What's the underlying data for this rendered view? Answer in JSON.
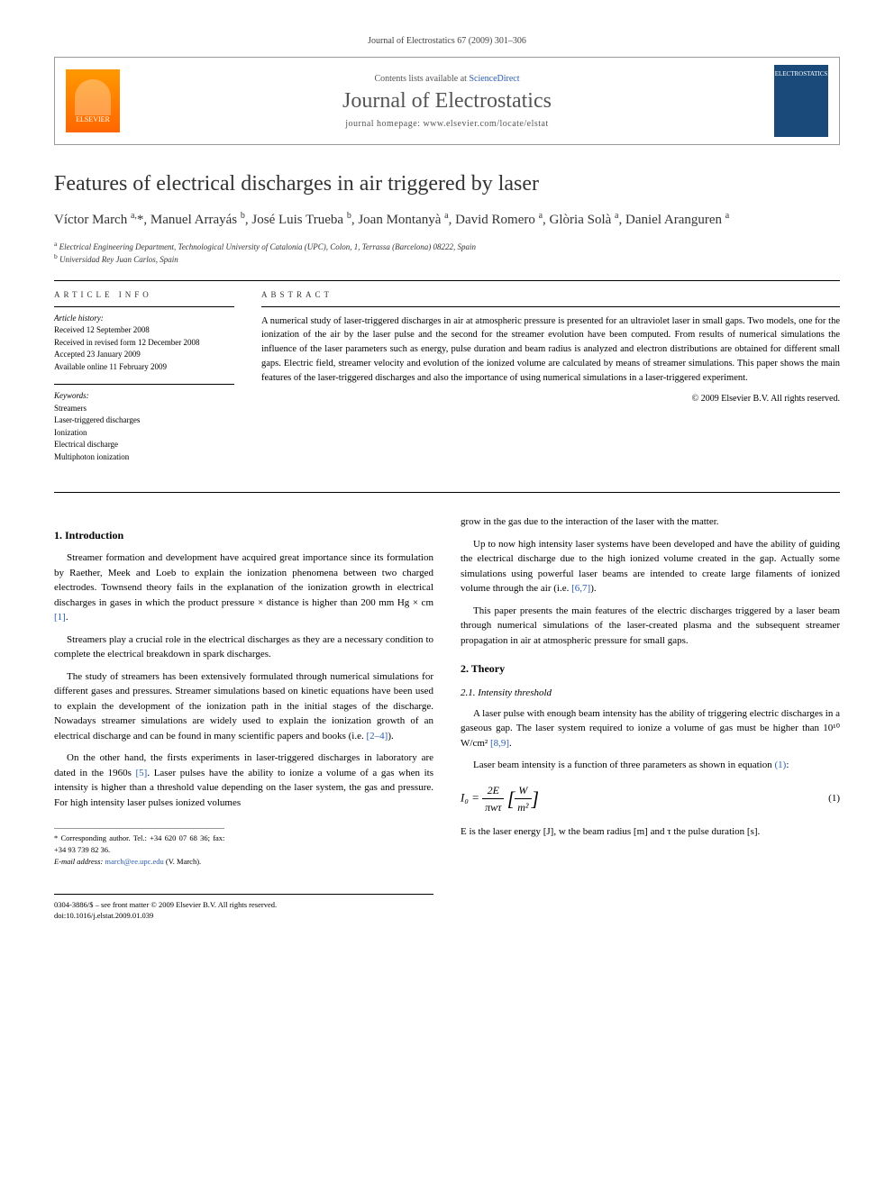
{
  "header": {
    "citation": "Journal of Electrostatics 67 (2009) 301–306",
    "contents_prefix": "Contents lists available at ",
    "contents_link": "ScienceDirect",
    "journal_name": "Journal of Electrostatics",
    "homepage_prefix": "journal homepage: ",
    "homepage_url": "www.elsevier.com/locate/elstat",
    "publisher_logo_text": "ELSEVIER",
    "cover_text": "ELECTROSTATICS"
  },
  "title": "Features of electrical discharges in air triggered by laser",
  "authors_html": "Víctor March <sup>a,</sup>*, Manuel Arrayás <sup>b</sup>, José Luis Trueba <sup>b</sup>, Joan Montanyà <sup>a</sup>, David Romero <sup>a</sup>, Glòria Solà <sup>a</sup>, Daniel Aranguren <sup>a</sup>",
  "affiliations": {
    "a": "Electrical Engineering Department, Technological University of Catalonia (UPC), Colon, 1, Terrassa (Barcelona) 08222, Spain",
    "b": "Universidad Rey Juan Carlos, Spain"
  },
  "article_info": {
    "heading": "ARTICLE INFO",
    "history_label": "Article history:",
    "received": "Received 12 September 2008",
    "revised": "Received in revised form 12 December 2008",
    "accepted": "Accepted 23 January 2009",
    "online": "Available online 11 February 2009",
    "keywords_label": "Keywords:",
    "keywords": [
      "Streamers",
      "Laser-triggered discharges",
      "Ionization",
      "Electrical discharge",
      "Multiphoton ionization"
    ]
  },
  "abstract": {
    "heading": "ABSTRACT",
    "text": "A numerical study of laser-triggered discharges in air at atmospheric pressure is presented for an ultraviolet laser in small gaps. Two models, one for the ionization of the air by the laser pulse and the second for the streamer evolution have been computed. From results of numerical simulations the influence of the laser parameters such as energy, pulse duration and beam radius is analyzed and electron distributions are obtained for different small gaps. Electric field, streamer velocity and evolution of the ionized volume are calculated by means of streamer simulations. This paper shows the main features of the laser-triggered discharges and also the importance of using numerical simulations in a laser-triggered experiment.",
    "copyright": "© 2009 Elsevier B.V. All rights reserved."
  },
  "body": {
    "sec1_title": "1. Introduction",
    "sec1_p1": "Streamer formation and development have acquired great importance since its formulation by Raether, Meek and Loeb to explain the ionization phenomena between two charged electrodes. Townsend theory fails in the explanation of the ionization growth in electrical discharges in gases in which the product pressure × distance is higher than 200 mm Hg × cm ",
    "sec1_ref1": "[1]",
    "sec1_p1_end": ".",
    "sec1_p2": "Streamers play a crucial role in the electrical discharges as they are a necessary condition to complete the electrical breakdown in spark discharges.",
    "sec1_p3": "The study of streamers has been extensively formulated through numerical simulations for different gases and pressures. Streamer simulations based on kinetic equations have been used to explain the development of the ionization path in the initial stages of the discharge. Nowadays streamer simulations are widely used to explain the ionization growth of an electrical discharge and can be found in many scientific papers and books (i.e. ",
    "sec1_ref2": "[2–4]",
    "sec1_p3_end": ").",
    "sec1_p4": "On the other hand, the firsts experiments in laser-triggered discharges in laboratory are dated in the 1960s ",
    "sec1_ref3": "[5]",
    "sec1_p4_end": ". Laser pulses have the ability to ionize a volume of a gas when its intensity is higher than a threshold value depending on the laser system, the gas and pressure. For high intensity laser pulses ionized volumes",
    "sec1_p5": "grow in the gas due to the interaction of the laser with the matter.",
    "sec1_p6": "Up to now high intensity laser systems have been developed and have the ability of guiding the electrical discharge due to the high ionized volume created in the gap. Actually some simulations using powerful laser beams are intended to create large filaments of ionized volume through the air (i.e. ",
    "sec1_ref4": "[6,7]",
    "sec1_p6_end": ").",
    "sec1_p7": "This paper presents the main features of the electric discharges triggered by a laser beam through numerical simulations of the laser-created plasma and the subsequent streamer propagation in air at atmospheric pressure for small gaps.",
    "sec2_title": "2. Theory",
    "sec21_title": "2.1. Intensity threshold",
    "sec2_p1": "A laser pulse with enough beam intensity has the ability of triggering electric discharges in a gaseous gap. The laser system required to ionize a volume of gas must be higher than 10¹⁰ W/cm² ",
    "sec2_ref1": "[8,9]",
    "sec2_p1_end": ".",
    "sec2_p2": "Laser beam intensity is a function of three parameters as shown in equation ",
    "sec2_eqref": "(1)",
    "sec2_p2_end": ":",
    "eq1_lhs": "I₀ = ",
    "eq1_num": "2E",
    "eq1_den": "πwτ",
    "eq1_unit_num": "W",
    "eq1_unit_den": "m²",
    "eq1_number": "(1)",
    "sec2_p3": "E is the laser energy [J], w the beam radius [m] and τ the pulse duration [s]."
  },
  "corr": {
    "star": "* Corresponding author. Tel.: +34 620 07 68 36; fax: +34 93 739 82 36.",
    "email_label": "E-mail address: ",
    "email": "march@ee.upc.edu",
    "email_suffix": " (V. March)."
  },
  "footer": {
    "line1": "0304-3886/$ – see front matter © 2009 Elsevier B.V. All rights reserved.",
    "line2": "doi:10.1016/j.elstat.2009.01.039"
  },
  "colors": {
    "link": "#2a5db0",
    "elsevier_orange": "#f60",
    "cover_blue": "#1a4a7a"
  }
}
